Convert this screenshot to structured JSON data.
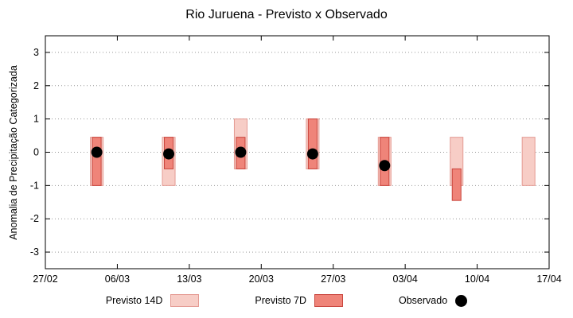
{
  "chart_data": {
    "type": "bar",
    "title": "Rio Juruena - Previsto x Observado",
    "ylabel": "Anomalia de Precipitação Categorizada",
    "xlabel": "",
    "xlim_days": [
      0,
      49
    ],
    "ylim": [
      -3.5,
      3.5
    ],
    "yticks": [
      -3,
      -2,
      -1,
      0,
      1,
      2,
      3
    ],
    "x_ticks": [
      {
        "day": 0,
        "label": "27/02"
      },
      {
        "day": 7,
        "label": "06/03"
      },
      {
        "day": 14,
        "label": "13/03"
      },
      {
        "day": 21,
        "label": "20/03"
      },
      {
        "day": 28,
        "label": "27/03"
      },
      {
        "day": 35,
        "label": "03/04"
      },
      {
        "day": 42,
        "label": "10/04"
      },
      {
        "day": 49,
        "label": "17/04"
      }
    ],
    "grid": "horizontal-dotted",
    "legend_position": "bottom",
    "series": [
      {
        "name": "Previsto 14D",
        "type": "bar",
        "color": "#f7cdc6",
        "border": "#e49a92",
        "bars": [
          {
            "day": 5,
            "low": -1.0,
            "high": 0.45
          },
          {
            "day": 12,
            "low": -1.0,
            "high": 0.45
          },
          {
            "day": 19,
            "low": -0.5,
            "high": 1.0
          },
          {
            "day": 26,
            "low": -0.5,
            "high": 1.0
          },
          {
            "day": 33,
            "low": -1.0,
            "high": 0.45
          },
          {
            "day": 40,
            "low": -1.0,
            "high": 0.45
          },
          {
            "day": 47,
            "low": -1.0,
            "high": 0.45
          }
        ]
      },
      {
        "name": "Previsto 7D",
        "type": "bar",
        "color": "#ef8479",
        "border": "#c9443c",
        "bars": [
          {
            "day": 5,
            "low": -1.0,
            "high": 0.45
          },
          {
            "day": 12,
            "low": -0.5,
            "high": 0.45
          },
          {
            "day": 19,
            "low": -0.5,
            "high": 0.45
          },
          {
            "day": 26,
            "low": -0.5,
            "high": 1.0
          },
          {
            "day": 33,
            "low": -1.0,
            "high": 0.45
          },
          {
            "day": 40,
            "low": -1.45,
            "high": -0.5
          }
        ]
      },
      {
        "name": "Observado",
        "type": "point",
        "color": "#000000",
        "points": [
          {
            "day": 5,
            "value": 0.0
          },
          {
            "day": 12,
            "value": -0.05
          },
          {
            "day": 19,
            "value": 0.0
          },
          {
            "day": 26,
            "value": -0.05
          },
          {
            "day": 33,
            "value": -0.4
          }
        ]
      }
    ]
  }
}
